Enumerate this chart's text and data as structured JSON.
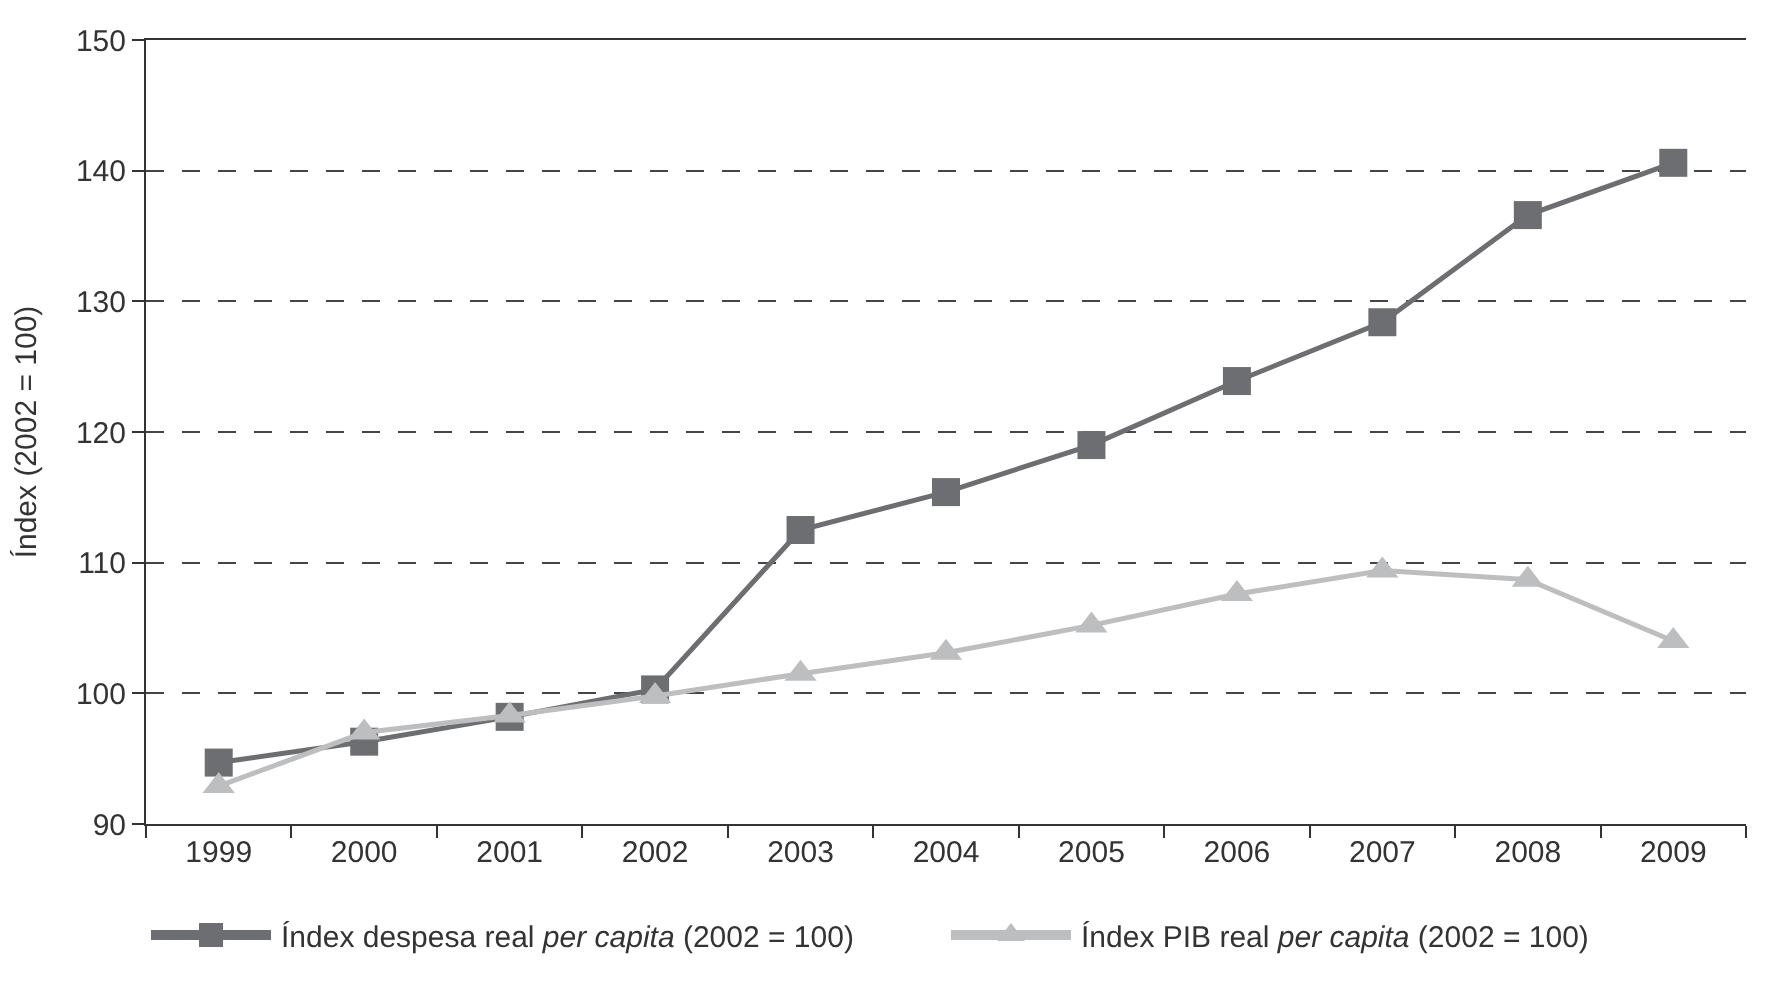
{
  "chart_data": {
    "type": "line",
    "ylabel": "Índex (2002 = 100)",
    "categories": [
      "1999",
      "2000",
      "2001",
      "2002",
      "2003",
      "2004",
      "2005",
      "2006",
      "2007",
      "2008",
      "2009"
    ],
    "series": [
      {
        "name": "Índex despesa real *per capita* (2002 = 100)",
        "color": "#6d6e71",
        "marker": "square",
        "values": [
          94.7,
          96.3,
          98.2,
          100.3,
          112.5,
          115.4,
          119.0,
          123.9,
          128.4,
          136.6,
          140.6
        ]
      },
      {
        "name": "Índex PIB real *per capita* (2002 = 100)",
        "color": "#bcbec0",
        "marker": "triangle",
        "values": [
          92.9,
          97.0,
          98.3,
          99.8,
          101.5,
          103.1,
          105.2,
          107.6,
          109.4,
          108.7,
          104.0
        ]
      }
    ],
    "ylim": [
      90,
      150
    ],
    "yticks": [
      90,
      100,
      110,
      120,
      130,
      140,
      150
    ],
    "grid": "y",
    "legend": "bottom",
    "line_style": "solid"
  }
}
